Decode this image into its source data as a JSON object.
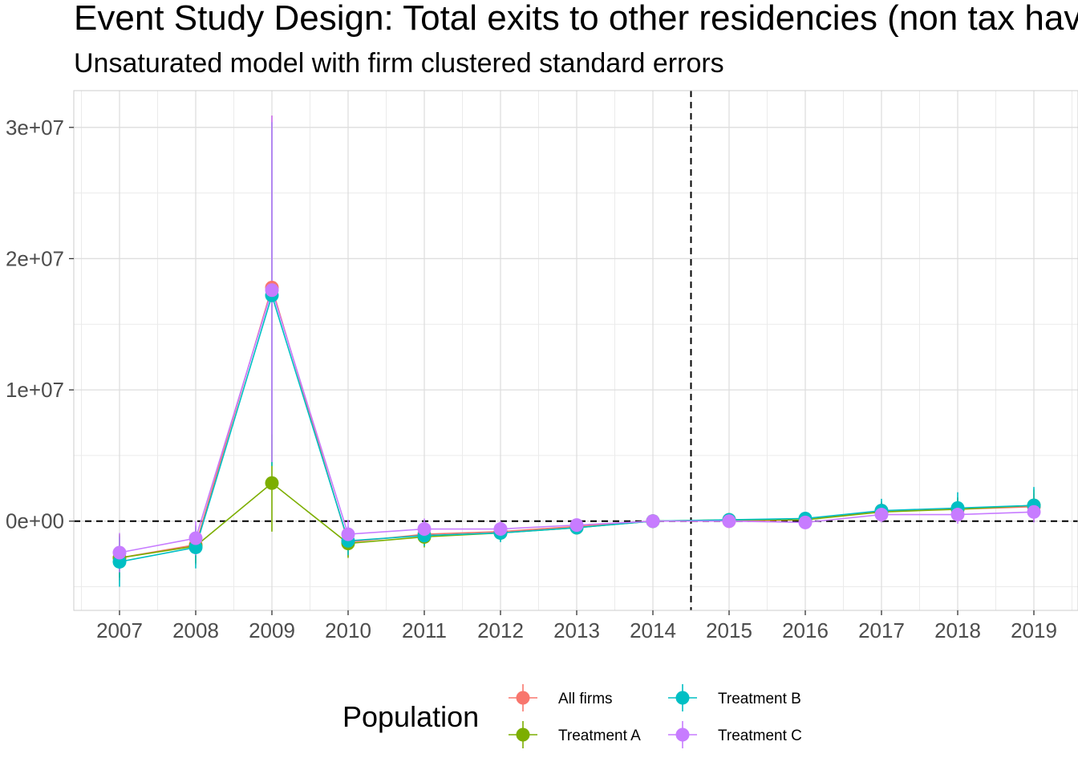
{
  "chart_data": {
    "type": "line",
    "title": "Event Study Design: Total exits to other residencies (non tax haven)",
    "subtitle": "Unsaturated model with firm clustered standard errors",
    "xlabel": "",
    "ylabel": "",
    "x": [
      "2007",
      "2008",
      "2009",
      "2010",
      "2011",
      "2012",
      "2013",
      "2014",
      "2015",
      "2016",
      "2017",
      "2018",
      "2019"
    ],
    "ylim": [
      -6800000,
      32800000
    ],
    "y_ticks": [
      0,
      10000000,
      20000000,
      30000000
    ],
    "y_tick_labels": [
      "0e+00",
      "1e+07",
      "2e+07",
      "3e+07"
    ],
    "grid": true,
    "reference_lines": {
      "horizontal_y": 0,
      "vertical_between": [
        "2014",
        "2015"
      ],
      "style": "dashed"
    },
    "legend": {
      "title": "Population",
      "position": "bottom"
    },
    "series": [
      {
        "name": "All firms",
        "color": "#F8766D",
        "values": [
          -2800000,
          -1800000,
          17800000,
          -1600000,
          -1000000,
          -800000,
          -400000,
          0,
          0,
          100000,
          800000,
          900000,
          1100000
        ],
        "lower": [
          -4500000,
          -3300000,
          4700000,
          -2700000,
          -1800000,
          -1400000,
          -900000,
          0,
          -300000,
          -200000,
          100000,
          0,
          100000
        ],
        "upper": [
          -1100000,
          -300000,
          30900000,
          -500000,
          -200000,
          -200000,
          100000,
          0,
          300000,
          400000,
          1500000,
          1800000,
          2100000
        ]
      },
      {
        "name": "Treatment A",
        "color": "#7CAE00",
        "values": [
          -2800000,
          -1900000,
          2900000,
          -1700000,
          -1200000,
          -900000,
          -500000,
          0,
          100000,
          100000,
          700000,
          900000,
          1200000
        ],
        "lower": [
          -4300000,
          -3200000,
          -800000,
          -2800000,
          -2000000,
          -1500000,
          -1000000,
          0,
          -200000,
          -200000,
          100000,
          100000,
          200000
        ],
        "upper": [
          -1000000,
          -500000,
          6600000,
          -600000,
          -400000,
          -300000,
          0,
          0,
          400000,
          500000,
          1400000,
          1800000,
          2400000
        ]
      },
      {
        "name": "Treatment B",
        "color": "#00BFC4",
        "values": [
          -3100000,
          -2000000,
          17200000,
          -1500000,
          -1100000,
          -900000,
          -500000,
          0,
          100000,
          200000,
          800000,
          1000000,
          1200000
        ],
        "lower": [
          -5000000,
          -3600000,
          4200000,
          -2600000,
          -1900000,
          -1600000,
          -1000000,
          0,
          -200000,
          -200000,
          100000,
          100000,
          200000
        ],
        "upper": [
          -1200000,
          -400000,
          30400000,
          -400000,
          -300000,
          -300000,
          0,
          0,
          400000,
          600000,
          1700000,
          2200000,
          2600000
        ]
      },
      {
        "name": "Treatment C",
        "color": "#C77CFF",
        "values": [
          -2400000,
          -1300000,
          17600000,
          -1000000,
          -600000,
          -600000,
          -300000,
          0,
          0,
          -100000,
          500000,
          500000,
          700000
        ],
        "lower": [
          -3900000,
          -2600000,
          4500000,
          -2100000,
          -1400000,
          -1200000,
          -800000,
          0,
          -300000,
          -400000,
          -100000,
          -200000,
          -100000
        ],
        "upper": [
          -900000,
          0,
          30900000,
          100000,
          200000,
          0,
          200000,
          0,
          300000,
          200000,
          1100000,
          1200000,
          1500000
        ]
      }
    ]
  }
}
